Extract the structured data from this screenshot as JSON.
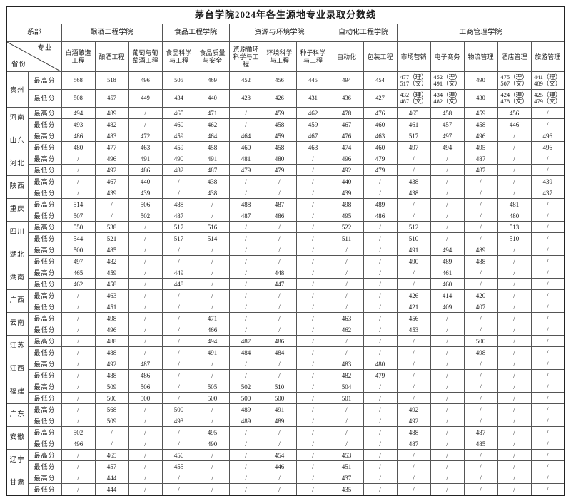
{
  "title": "茅台学院2024年各生源地专业录取分数线",
  "colors": {
    "background": "#ffffff",
    "border_thin": "#555555",
    "border_strong": "#222222",
    "text": "#1a1a1a"
  },
  "header": {
    "dept_label": "系部",
    "province_label": "省份",
    "major_label": "专业",
    "colleges": [
      {
        "name": "酿酒工程学院",
        "majors": [
          "白酒酿造工程",
          "酿酒工程",
          "葡萄与葡萄酒工程"
        ]
      },
      {
        "name": "食品工程学院",
        "majors": [
          "食品科学与工程",
          "食品质量与安全"
        ]
      },
      {
        "name": "资源与环境学院",
        "majors": [
          "资源循环科学与工程",
          "环境科学与工程",
          "种子科学与工程"
        ]
      },
      {
        "name": "自动化工程学院",
        "majors": [
          "自动化",
          "包装工程"
        ]
      },
      {
        "name": "工商管理学院",
        "majors": [
          "市场营销",
          "电子商务",
          "物流管理",
          "酒店管理",
          "旅游管理"
        ]
      }
    ]
  },
  "row_labels": {
    "max": "最高分",
    "min": "最低分"
  },
  "provinces": [
    {
      "name": "贵州",
      "max": [
        "568",
        "518",
        "496",
        "505",
        "469",
        "452",
        "456",
        "445",
        "494",
        "454",
        "477（理）\n517（文）",
        "452（理）\n491（文）",
        "490",
        "475（理）\n507（文）",
        "441（理）\n489（文）"
      ],
      "min": [
        "508",
        "457",
        "449",
        "434",
        "440",
        "428",
        "426",
        "431",
        "436",
        "427",
        "432（理）\n487（文）",
        "434（理）\n482（文）",
        "430",
        "424（理）\n478（文）",
        "425（理）\n479（文）"
      ]
    },
    {
      "name": "河南",
      "max": [
        "494",
        "489",
        "/",
        "465",
        "471",
        "/",
        "459",
        "462",
        "478",
        "476",
        "465",
        "458",
        "459",
        "456",
        "/"
      ],
      "min": [
        "493",
        "482",
        "/",
        "460",
        "462",
        "/",
        "458",
        "459",
        "467",
        "460",
        "461",
        "457",
        "458",
        "446",
        "/"
      ]
    },
    {
      "name": "山东",
      "max": [
        "486",
        "483",
        "472",
        "459",
        "464",
        "464",
        "459",
        "467",
        "476",
        "463",
        "517",
        "497",
        "496",
        "/",
        "496"
      ],
      "min": [
        "480",
        "477",
        "463",
        "459",
        "458",
        "460",
        "458",
        "463",
        "474",
        "460",
        "497",
        "494",
        "495",
        "/",
        "496"
      ]
    },
    {
      "name": "河北",
      "max": [
        "/",
        "496",
        "491",
        "490",
        "491",
        "481",
        "480",
        "/",
        "496",
        "479",
        "/",
        "/",
        "487",
        "/",
        "/"
      ],
      "min": [
        "/",
        "492",
        "486",
        "482",
        "487",
        "479",
        "479",
        "/",
        "492",
        "479",
        "/",
        "/",
        "487",
        "/",
        "/"
      ]
    },
    {
      "name": "陕西",
      "max": [
        "/",
        "467",
        "440",
        "/",
        "438",
        "/",
        "/",
        "/",
        "440",
        "/",
        "438",
        "/",
        "/",
        "/",
        "439"
      ],
      "min": [
        "/",
        "439",
        "439",
        "/",
        "438",
        "/",
        "/",
        "/",
        "439",
        "/",
        "438",
        "/",
        "/",
        "/",
        "437"
      ]
    },
    {
      "name": "重庆",
      "max": [
        "514",
        "/",
        "506",
        "488",
        "/",
        "488",
        "487",
        "/",
        "498",
        "489",
        "/",
        "/",
        "/",
        "481",
        "/"
      ],
      "min": [
        "507",
        "/",
        "502",
        "487",
        "/",
        "487",
        "486",
        "/",
        "495",
        "486",
        "/",
        "/",
        "/",
        "480",
        "/"
      ]
    },
    {
      "name": "四川",
      "max": [
        "550",
        "538",
        "/",
        "517",
        "516",
        "/",
        "/",
        "/",
        "522",
        "/",
        "512",
        "/",
        "/",
        "513",
        "/"
      ],
      "min": [
        "544",
        "521",
        "/",
        "517",
        "514",
        "/",
        "/",
        "/",
        "511",
        "/",
        "510",
        "/",
        "/",
        "510",
        "/"
      ]
    },
    {
      "name": "湖北",
      "max": [
        "500",
        "485",
        "/",
        "/",
        "/",
        "/",
        "/",
        "/",
        "/",
        "/",
        "491",
        "494",
        "489",
        "/",
        "/"
      ],
      "min": [
        "497",
        "482",
        "/",
        "/",
        "/",
        "/",
        "/",
        "/",
        "/",
        "/",
        "490",
        "489",
        "488",
        "/",
        "/"
      ]
    },
    {
      "name": "湖南",
      "max": [
        "465",
        "459",
        "/",
        "449",
        "/",
        "/",
        "448",
        "/",
        "/",
        "/",
        "/",
        "461",
        "/",
        "/",
        "/"
      ],
      "min": [
        "462",
        "458",
        "/",
        "448",
        "/",
        "/",
        "447",
        "/",
        "/",
        "/",
        "/",
        "460",
        "/",
        "/",
        "/"
      ]
    },
    {
      "name": "广西",
      "max": [
        "/",
        "463",
        "/",
        "/",
        "/",
        "/",
        "/",
        "/",
        "/",
        "/",
        "426",
        "414",
        "420",
        "/",
        "/"
      ],
      "min": [
        "/",
        "451",
        "/",
        "/",
        "/",
        "/",
        "/",
        "/",
        "/",
        "/",
        "421",
        "409",
        "407",
        "/",
        "/"
      ]
    },
    {
      "name": "云南",
      "max": [
        "/",
        "498",
        "/",
        "/",
        "471",
        "/",
        "/",
        "/",
        "463",
        "/",
        "456",
        "/",
        "/",
        "/",
        "/"
      ],
      "min": [
        "/",
        "496",
        "/",
        "/",
        "466",
        "/",
        "/",
        "/",
        "462",
        "/",
        "453",
        "/",
        "/",
        "/",
        "/"
      ]
    },
    {
      "name": "江苏",
      "max": [
        "/",
        "488",
        "/",
        "/",
        "494",
        "487",
        "486",
        "/",
        "/",
        "/",
        "/",
        "/",
        "500",
        "/",
        "/"
      ],
      "min": [
        "/",
        "488",
        "/",
        "/",
        "491",
        "484",
        "484",
        "/",
        "/",
        "/",
        "/",
        "/",
        "498",
        "/",
        "/"
      ]
    },
    {
      "name": "江西",
      "max": [
        "/",
        "492",
        "487",
        "/",
        "/",
        "/",
        "/",
        "/",
        "483",
        "480",
        "/",
        "/",
        "/",
        "/",
        "/"
      ],
      "min": [
        "/",
        "488",
        "486",
        "/",
        "/",
        "/",
        "/",
        "/",
        "482",
        "479",
        "/",
        "/",
        "/",
        "/",
        "/"
      ]
    },
    {
      "name": "福建",
      "max": [
        "/",
        "509",
        "506",
        "/",
        "505",
        "502",
        "510",
        "/",
        "504",
        "/",
        "/",
        "/",
        "/",
        "/",
        "/"
      ],
      "min": [
        "/",
        "506",
        "500",
        "/",
        "500",
        "500",
        "500",
        "/",
        "501",
        "/",
        "/",
        "/",
        "/",
        "/",
        "/"
      ]
    },
    {
      "name": "广东",
      "max": [
        "/",
        "568",
        "/",
        "500",
        "/",
        "489",
        "491",
        "/",
        "/",
        "/",
        "492",
        "/",
        "/",
        "/",
        "/"
      ],
      "min": [
        "/",
        "509",
        "/",
        "493",
        "/",
        "489",
        "489",
        "/",
        "/",
        "/",
        "492",
        "/",
        "/",
        "/",
        "/"
      ]
    },
    {
      "name": "安徽",
      "max": [
        "502",
        "/",
        "/",
        "/",
        "495",
        "/",
        "/",
        "/",
        "/",
        "/",
        "488",
        "/",
        "487",
        "/",
        "/"
      ],
      "min": [
        "496",
        "/",
        "/",
        "/",
        "490",
        "/",
        "/",
        "/",
        "/",
        "/",
        "487",
        "/",
        "485",
        "/",
        "/"
      ]
    },
    {
      "name": "辽宁",
      "max": [
        "/",
        "465",
        "/",
        "456",
        "/",
        "/",
        "454",
        "/",
        "453",
        "/",
        "/",
        "/",
        "/",
        "/",
        "/"
      ],
      "min": [
        "/",
        "457",
        "/",
        "455",
        "/",
        "/",
        "446",
        "/",
        "451",
        "/",
        "/",
        "/",
        "/",
        "/",
        "/"
      ]
    },
    {
      "name": "甘肃",
      "max": [
        "/",
        "444",
        "/",
        "/",
        "/",
        "/",
        "/",
        "/",
        "437",
        "/",
        "/",
        "/",
        "/",
        "/",
        "/"
      ],
      "min": [
        "/",
        "444",
        "/",
        "/",
        "/",
        "/",
        "/",
        "/",
        "435",
        "/",
        "/",
        "/",
        "/",
        "/",
        "/"
      ]
    }
  ]
}
